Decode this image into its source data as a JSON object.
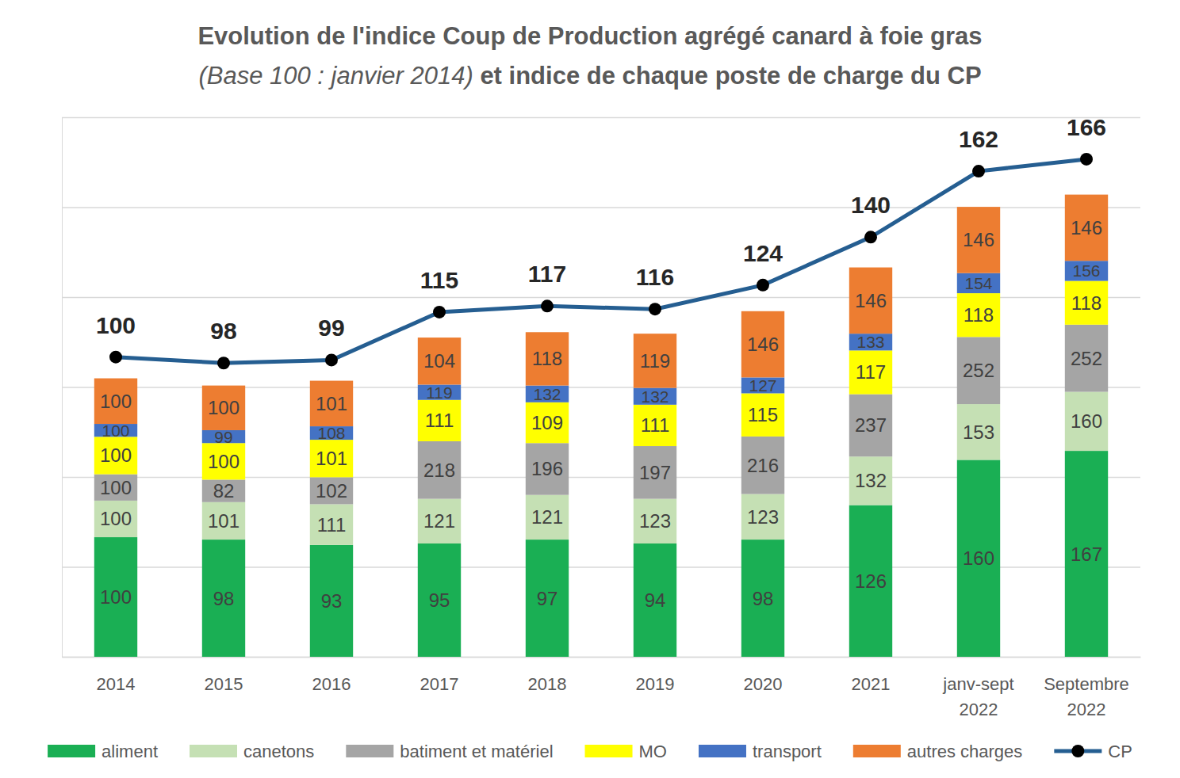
{
  "chart_data": {
    "type": "bar",
    "stacked": true,
    "title": "Evolution de l'indice Coup de Production agrégé canard à foie gras",
    "subtitle": "(Base 100 : janvier 2014)",
    "title_continued": "et indice de chaque poste de charge du CP",
    "categories": [
      "2014",
      "2015",
      "2016",
      "2017",
      "2018",
      "2019",
      "2020",
      "2021",
      "janv-sept 2022",
      "Septembre 2022"
    ],
    "ylim": [
      0,
      180
    ],
    "yticks": [
      0,
      30,
      60,
      90,
      120,
      150,
      180
    ],
    "grid": true,
    "tick_labels": "x",
    "legend": "bottom",
    "data_labels": true,
    "series": [
      {
        "name": "aliment",
        "color": "#1aaf54",
        "values": [
          39.9,
          39.1,
          37.3,
          37.8,
          39.1,
          37.8,
          39.1,
          50.6,
          65.7,
          68.7
        ],
        "indices": [
          100,
          98,
          93,
          95,
          97,
          94,
          98,
          126,
          160,
          167
        ]
      },
      {
        "name": "canetons",
        "color": "#c5e0b4",
        "values": [
          12.2,
          12.5,
          13.6,
          14.9,
          14.9,
          14.9,
          15.2,
          16.2,
          18.6,
          19.7
        ],
        "indices": [
          100,
          101,
          111,
          121,
          121,
          123,
          123,
          132,
          153,
          160
        ]
      },
      {
        "name": "batiment et matériel",
        "color": "#a5a5a5",
        "values": [
          8.8,
          7.5,
          9.0,
          19.2,
          17.3,
          17.6,
          19.2,
          20.8,
          22.4,
          22.4
        ],
        "indices": [
          100,
          82,
          102,
          218,
          196,
          197,
          216,
          237,
          252,
          252
        ]
      },
      {
        "name": "MO",
        "color": "#ffff00",
        "values": [
          12.5,
          12.2,
          12.5,
          13.8,
          13.6,
          13.8,
          14.4,
          14.6,
          14.6,
          14.6
        ],
        "indices": [
          100,
          100,
          101,
          111,
          109,
          111,
          115,
          117,
          118,
          118
        ]
      },
      {
        "name": "transport",
        "color": "#4472c4",
        "values": [
          4.3,
          4.3,
          4.5,
          5.1,
          5.6,
          5.6,
          5.3,
          5.6,
          6.7,
          6.7
        ],
        "indices": [
          100,
          99,
          108,
          119,
          132,
          132,
          127,
          133,
          154,
          156
        ]
      },
      {
        "name": "autres charges",
        "color": "#ed7d31",
        "values": [
          15.2,
          14.9,
          15.2,
          15.7,
          17.8,
          18.1,
          22.1,
          22.1,
          22.1,
          22.1
        ],
        "indices": [
          100,
          100,
          101,
          104,
          118,
          119,
          146,
          146,
          146,
          146
        ]
      },
      {
        "name": "CP",
        "type": "line",
        "color": "#255e91",
        "marker": "circle",
        "line_style": "solid",
        "values": [
          100,
          98,
          99,
          115,
          117,
          116,
          124,
          140,
          162,
          166
        ]
      }
    ]
  }
}
